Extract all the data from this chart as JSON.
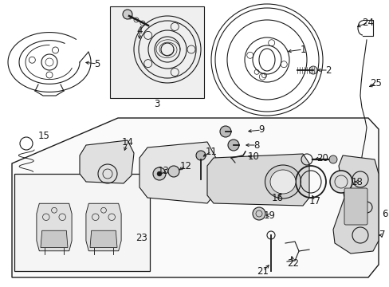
{
  "bg_color": "#ffffff",
  "line_color": "#1a1a1a",
  "fig_width": 4.89,
  "fig_height": 3.6,
  "dpi": 100,
  "lw": 0.8,
  "panel_color": "#f8f8f8",
  "hub_box_color": "#e8e8e8",
  "pad_box_color": "#f0f0f0"
}
